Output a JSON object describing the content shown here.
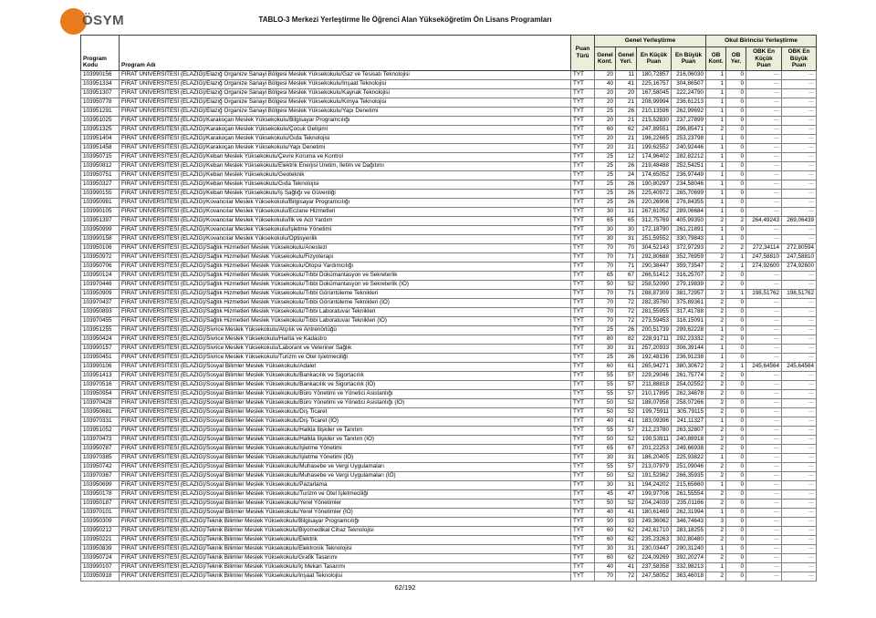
{
  "logo": {
    "text": "ÖSYM",
    "circle_color": "#e87b1e"
  },
  "title": "TABLO-3 Merkezi Yerleştirme İle Öğrenci Alan Yükseköğretim Ön Lisans Programları",
  "footer": {
    "page": "62/192"
  },
  "colors": {
    "header_bg": "#e9efda",
    "border_dark": "#404040",
    "border_light": "#808080",
    "dash_text": "#7f7f7f",
    "logo_orange": "#e87b1e"
  },
  "table": {
    "group_headers": {
      "genel": "Genel Yerleştirme",
      "okul": "Okul Birincisi Yerleştirme"
    },
    "headers": [
      "Program\nKodu",
      "Program Adı",
      "Puan\nTürü",
      "Genel\nKont.",
      "Genel\nYerl.",
      "En Küçük\nPuan",
      "En Büyük\nPuan",
      "OB\nKont.",
      "OB\nYer.",
      "OBK En\nKüçük Puan",
      "OBK En\nBüyük Puan"
    ],
    "rows": [
      [
        "103990156",
        "FIRAT ÜNİVERSİTESİ (ELAZIĞ)/Elazığ Organize Sanayi Bölgesi Meslek Yüksekokulu/Gaz ve Tesisatı Teknolojisi",
        "TYT",
        "20",
        "11",
        "180,72857",
        "216,06030",
        "1",
        "0",
        "---",
        "---"
      ],
      [
        "103951334",
        "FIRAT ÜNİVERSİTESİ (ELAZIĞ)/Elazığ Organize Sanayi Bölgesi Meslek Yüksekokulu/İnşaat Teknolojisi",
        "TYT",
        "40",
        "41",
        "225,16757",
        "304,86507",
        "1",
        "0",
        "---",
        "---"
      ],
      [
        "103951307",
        "FIRAT ÜNİVERSİTESİ (ELAZIĞ)/Elazığ Organize Sanayi Bölgesi Meslek Yüksekokulu/Kaynak Teknolojisi",
        "TYT",
        "20",
        "20",
        "167,58045",
        "222,24790",
        "1",
        "0",
        "---",
        "---"
      ],
      [
        "103950778",
        "FIRAT ÜNİVERSİTESİ (ELAZIĞ)/Elazığ Organize Sanayi Bölgesi Meslek Yüksekokulu/Kimya Teknolojisi",
        "TYT",
        "20",
        "21",
        "208,99994",
        "236,61213",
        "1",
        "0",
        "---",
        "---"
      ],
      [
        "103951291",
        "FIRAT ÜNİVERSİTESİ (ELAZIĞ)/Elazığ Organize Sanayi Bölgesi Meslek Yüksekokulu/Yapı Denetimi",
        "TYT",
        "25",
        "26",
        "210,13596",
        "262,99692",
        "1",
        "0",
        "---",
        "---"
      ],
      [
        "103951025",
        "FIRAT ÜNİVERSİTESİ (ELAZIĞ)/Karakoçan Meslek Yüksekokulu/Bilgisayar Programcılığı",
        "TYT",
        "20",
        "21",
        "215,52830",
        "237,27899",
        "1",
        "0",
        "---",
        "---"
      ],
      [
        "103951325",
        "FIRAT ÜNİVERSİTESİ (ELAZIĞ)/Karakoçan Meslek Yüksekokulu/Çocuk Gelişimi",
        "TYT",
        "60",
        "62",
        "247,89551",
        "296,85471",
        "2",
        "0",
        "---",
        "---"
      ],
      [
        "103951404",
        "FIRAT ÜNİVERSİTESİ (ELAZIĞ)/Karakoçan Meslek Yüksekokulu/Gıda Teknolojisi",
        "TYT",
        "20",
        "21",
        "196,22665",
        "253,23798",
        "1",
        "0",
        "---",
        "---"
      ],
      [
        "103951458",
        "FIRAT ÜNİVERSİTESİ (ELAZIĞ)/Karakoçan Meslek Yüksekokulu/Yapı Denetimi",
        "TYT",
        "20",
        "21",
        "199,62552",
        "240,92446",
        "1",
        "0",
        "---",
        "---"
      ],
      [
        "103950715",
        "FIRAT ÜNİVERSİTESİ (ELAZIĞ)/Keban Meslek Yüksekokulu/Çevre Koruma ve Kontrol",
        "TYT",
        "25",
        "12",
        "174,96402",
        "282,82212",
        "1",
        "0",
        "---",
        "---"
      ],
      [
        "103950812",
        "FIRAT ÜNİVERSİTESİ (ELAZIĞ)/Keban Meslek Yüksekokulu/Elektrik Enerjisi Üretim, İletim ve Dağıtımı",
        "TYT",
        "25",
        "26",
        "219,48488",
        "252,54251",
        "1",
        "0",
        "---",
        "---"
      ],
      [
        "103950751",
        "FIRAT ÜNİVERSİTESİ (ELAZIĞ)/Keban Meslek Yüksekokulu/Geoteknik",
        "TYT",
        "25",
        "24",
        "174,65052",
        "236,97449",
        "1",
        "0",
        "---",
        "---"
      ],
      [
        "103950327",
        "FIRAT ÜNİVERSİTESİ (ELAZIĞ)/Keban Meslek Yüksekokulu/Gıda Teknolojisi",
        "TYT",
        "25",
        "26",
        "190,80297",
        "234,58046",
        "1",
        "0",
        "---",
        "---"
      ],
      [
        "103990155",
        "FIRAT ÜNİVERSİTESİ (ELAZIĞ)/Keban Meslek Yüksekokulu/İş Sağlığı ve Güvenliği",
        "TYT",
        "25",
        "26",
        "225,40972",
        "265,70699",
        "1",
        "0",
        "---",
        "---"
      ],
      [
        "103950981",
        "FIRAT ÜNİVERSİTESİ (ELAZIĞ)/Kovancılar Meslek Yüksekokulu/Bilgisayar Programcılığı",
        "TYT",
        "25",
        "26",
        "220,26906",
        "276,84355",
        "1",
        "0",
        "---",
        "---"
      ],
      [
        "103990105",
        "FIRAT ÜNİVERSİTESİ (ELAZIĞ)/Kovancılar Meslek Yüksekokulu/Eczane Hizmetleri",
        "TYT",
        "30",
        "31",
        "267,61052",
        "289,06684",
        "1",
        "0",
        "---",
        "---"
      ],
      [
        "103951397",
        "FIRAT ÜNİVERSİTESİ (ELAZIĞ)/Kovancılar Meslek Yüksekokulu/İlk ve Acil Yardım",
        "TYT",
        "65",
        "65",
        "312,75769",
        "405,99350",
        "2",
        "2",
        "264,49243",
        "269,06439"
      ],
      [
        "103950999",
        "FIRAT ÜNİVERSİTESİ (ELAZIĞ)/Kovancılar Meslek Yüksekokulu/İşletme Yönetimi",
        "TYT",
        "30",
        "30",
        "172,18790",
        "261,21891",
        "1",
        "0",
        "---",
        "---"
      ],
      [
        "103990158",
        "FIRAT ÜNİVERSİTESİ (ELAZIĞ)/Kovancılar Meslek Yüksekokulu/Optisyenlik",
        "TYT",
        "30",
        "31",
        "251,59552",
        "330,79843",
        "1",
        "0",
        "---",
        "---"
      ],
      [
        "103950106",
        "FIRAT ÜNİVERSİTESİ (ELAZIĞ)/Sağlık Hizmetleri Meslek Yüksekokulu/Anestezi",
        "TYT",
        "70",
        "70",
        "304,52143",
        "372,97293",
        "2",
        "2",
        "272,34114",
        "272,80594"
      ],
      [
        "103950972",
        "FIRAT ÜNİVERSİTESİ (ELAZIĞ)/Sağlık Hizmetleri Meslek Yüksekokulu/Fizyoterapi",
        "TYT",
        "70",
        "71",
        "292,80688",
        "352,76959",
        "2",
        "1",
        "247,58810",
        "247,58810"
      ],
      [
        "103950706",
        "FIRAT ÜNİVERSİTESİ (ELAZIĞ)/Sağlık Hizmetleri Meslek Yüksekokulu/Otopsi Yardımcılığı",
        "TYT",
        "70",
        "71",
        "290,38447",
        "359,73547",
        "2",
        "1",
        "274,92600",
        "274,92600"
      ],
      [
        "103950124",
        "FIRAT ÜNİVERSİTESİ (ELAZIĞ)/Sağlık Hizmetleri Meslek Yüksekokulu/Tıbbi Dokümantasyon ve Sekreterlik",
        "TYT",
        "65",
        "67",
        "266,51412",
        "316,25707",
        "2",
        "0",
        "---",
        "---"
      ],
      [
        "103970446",
        "FIRAT ÜNİVERSİTESİ (ELAZIĞ)/Sağlık Hizmetleri Meslek Yüksekokulu/Tıbbi Dokümantasyon ve Sekreterlik (İÖ)",
        "TYT",
        "50",
        "52",
        "258,52090",
        "279,19839",
        "2",
        "0",
        "---",
        "---"
      ],
      [
        "103950909",
        "FIRAT ÜNİVERSİTESİ (ELAZIĞ)/Sağlık Hizmetleri Meslek Yüksekokulu/Tıbbi Görüntüleme Teknikleri",
        "TYT",
        "70",
        "71",
        "288,87309",
        "381,72957",
        "2",
        "1",
        "198,51762",
        "198,51762"
      ],
      [
        "103970437",
        "FIRAT ÜNİVERSİTESİ (ELAZIĞ)/Sağlık Hizmetleri Meslek Yüksekokulu/Tıbbi Görüntüleme Teknikleri (İÖ)",
        "TYT",
        "70",
        "72",
        "282,35760",
        "375,89361",
        "2",
        "0",
        "---",
        "---"
      ],
      [
        "103950893",
        "FIRAT ÜNİVERSİTESİ (ELAZIĞ)/Sağlık Hizmetleri Meslek Yüksekokulu/Tıbbi Laboratuvar Teknikleri",
        "TYT",
        "70",
        "72",
        "281,55955",
        "317,41788",
        "2",
        "0",
        "---",
        "---"
      ],
      [
        "103970455",
        "FIRAT ÜNİVERSİTESİ (ELAZIĞ)/Sağlık Hizmetleri Meslek Yüksekokulu/Tıbbi Laboratuvar Teknikleri (İÖ)",
        "TYT",
        "70",
        "72",
        "273,59453",
        "316,15091",
        "2",
        "0",
        "---",
        "---"
      ],
      [
        "103951255",
        "FIRAT ÜNİVERSİTESİ (ELAZIĞ)/Sivrice Meslek Yüksekokulu/Atçılık ve Antrenörlüğü",
        "TYT",
        "25",
        "26",
        "200,51739",
        "299,62228",
        "1",
        "0",
        "---",
        "---"
      ],
      [
        "103950424",
        "FIRAT ÜNİVERSİTESİ (ELAZIĞ)/Sivrice Meslek Yüksekokulu/Harita ve Kadastro",
        "TYT",
        "80",
        "82",
        "228,91711",
        "292,23332",
        "2",
        "0",
        "---",
        "---"
      ],
      [
        "103990157",
        "FIRAT ÜNİVERSİTESİ (ELAZIĞ)/Sivrice Meslek Yüksekokulu/Laborant ve Veteriner Sağlık",
        "TYT",
        "30",
        "31",
        "257,20933",
        "306,39144",
        "1",
        "0",
        "---",
        "---"
      ],
      [
        "103950451",
        "FIRAT ÜNİVERSİTESİ (ELAZIĞ)/Sivrice Meslek Yüksekokulu/Turizm ve Otel İşletmeciliği",
        "TYT",
        "25",
        "26",
        "192,48136",
        "236,91238",
        "1",
        "0",
        "---",
        "---"
      ],
      [
        "103990106",
        "FIRAT ÜNİVERSİTESİ (ELAZIĞ)/Sosyal Bilimler Meslek Yüksekokulu/Adalet",
        "TYT",
        "60",
        "61",
        "265,94271",
        "380,30672",
        "2",
        "1",
        "245,64564",
        "245,64564"
      ],
      [
        "103951413",
        "FIRAT ÜNİVERSİTESİ (ELAZIĞ)/Sosyal Bilimler Meslek Yüksekokulu/Bankacılık ve Sigortacılık",
        "TYT",
        "55",
        "57",
        "229,29046",
        "261,75774",
        "2",
        "0",
        "---",
        "---"
      ],
      [
        "103970516",
        "FIRAT ÜNİVERSİTESİ (ELAZIĞ)/Sosyal Bilimler Meslek Yüksekokulu/Bankacılık ve Sigortacılık (İÖ)",
        "TYT",
        "55",
        "57",
        "211,88818",
        "254,02552",
        "2",
        "0",
        "---",
        "---"
      ],
      [
        "103950954",
        "FIRAT ÜNİVERSİTESİ (ELAZIĞ)/Sosyal Bilimler Meslek Yüksekokulu/Büro Yönetimi ve Yönetici Asistanlığı",
        "TYT",
        "55",
        "57",
        "210,17895",
        "262,34878",
        "2",
        "0",
        "---",
        "---"
      ],
      [
        "103970428",
        "FIRAT ÜNİVERSİTESİ (ELAZIĞ)/Sosyal Bilimler Meslek Yüksekokulu/Büro Yönetimi ve Yönetici Asistanlığı (İÖ)",
        "TYT",
        "50",
        "52",
        "188,07958",
        "258,07266",
        "2",
        "0",
        "---",
        "---"
      ],
      [
        "103950681",
        "FIRAT ÜNİVERSİTESİ (ELAZIĞ)/Sosyal Bilimler Meslek Yüksekokulu/Dış Ticaret",
        "TYT",
        "50",
        "52",
        "199,75911",
        "305,79115",
        "2",
        "0",
        "---",
        "---"
      ],
      [
        "103970331",
        "FIRAT ÜNİVERSİTESİ (ELAZIĞ)/Sosyal Bilimler Meslek Yüksekokulu/Dış Ticaret (İÖ)",
        "TYT",
        "40",
        "41",
        "183,09396",
        "241,11327",
        "1",
        "0",
        "---",
        "---"
      ],
      [
        "103951052",
        "FIRAT ÜNİVERSİTESİ (ELAZIĞ)/Sosyal Bilimler Meslek Yüksekokulu/Halkla İlişkiler ve Tanıtım",
        "TYT",
        "55",
        "57",
        "212,23780",
        "263,32807",
        "2",
        "0",
        "---",
        "---"
      ],
      [
        "103970473",
        "FIRAT ÜNİVERSİTESİ (ELAZIĞ)/Sosyal Bilimler Meslek Yüksekokulu/Halkla İlişkiler ve Tanıtım (İÖ)",
        "TYT",
        "50",
        "52",
        "190,53911",
        "240,88918",
        "2",
        "0",
        "---",
        "---"
      ],
      [
        "103950787",
        "FIRAT ÜNİVERSİTESİ (ELAZIĞ)/Sosyal Bilimler Meslek Yüksekokulu/İşletme Yönetimi",
        "TYT",
        "65",
        "67",
        "201,22253",
        "249,66938",
        "2",
        "0",
        "---",
        "---"
      ],
      [
        "103970385",
        "FIRAT ÜNİVERSİTESİ (ELAZIĞ)/Sosyal Bilimler Meslek Yüksekokulu/İşletme Yönetimi (İÖ)",
        "TYT",
        "30",
        "31",
        "186,20405",
        "225,93822",
        "1",
        "0",
        "---",
        "---"
      ],
      [
        "103950742",
        "FIRAT ÜNİVERSİTESİ (ELAZIĞ)/Sosyal Bilimler Meslek Yüksekokulu/Muhasebe ve Vergi Uygulamaları",
        "TYT",
        "55",
        "57",
        "213,07979",
        "251,09046",
        "2",
        "0",
        "---",
        "---"
      ],
      [
        "103970367",
        "FIRAT ÜNİVERSİTESİ (ELAZIĞ)/Sosyal Bilimler Meslek Yüksekokulu/Muhasebe ve Vergi Uygulamaları (İÖ)",
        "TYT",
        "50",
        "52",
        "191,52962",
        "266,35935",
        "2",
        "0",
        "---",
        "---"
      ],
      [
        "103950699",
        "FIRAT ÜNİVERSİTESİ (ELAZIĞ)/Sosyal Bilimler Meslek Yüksekokulu/Pazarlama",
        "TYT",
        "30",
        "31",
        "194,24202",
        "215,65660",
        "1",
        "0",
        "---",
        "---"
      ],
      [
        "103950178",
        "FIRAT ÜNİVERSİTESİ (ELAZIĞ)/Sosyal Bilimler Meslek Yüksekokulu/Turizm ve Otel İşletmeciliği",
        "TYT",
        "45",
        "47",
        "199,97706",
        "261,55554",
        "2",
        "0",
        "---",
        "---"
      ],
      [
        "103950187",
        "FIRAT ÜNİVERSİTESİ (ELAZIĞ)/Sosyal Bilimler Meslek Yüksekokulu/Yerel Yönetimler",
        "TYT",
        "50",
        "52",
        "204,24039",
        "235,01166",
        "2",
        "0",
        "---",
        "---"
      ],
      [
        "103970101",
        "FIRAT ÜNİVERSİTESİ (ELAZIĞ)/Sosyal Bilimler Meslek Yüksekokulu/Yerel Yönetimler (İÖ)",
        "TYT",
        "40",
        "41",
        "180,61469",
        "262,31994",
        "1",
        "0",
        "---",
        "---"
      ],
      [
        "103950309",
        "FIRAT ÜNİVERSİTESİ (ELAZIĞ)/Teknik Bilimler Meslek Yüksekokulu/Bilgisayar Programcılığı",
        "TYT",
        "90",
        "93",
        "249,36062",
        "346,74643",
        "3",
        "0",
        "---",
        "---"
      ],
      [
        "103950212",
        "FIRAT ÜNİVERSİTESİ (ELAZIĞ)/Teknik Bilimler Meslek Yüksekokulu/Biyomedikal Cihaz Teknolojisi",
        "TYT",
        "60",
        "62",
        "242,61710",
        "283,18255",
        "2",
        "0",
        "---",
        "---"
      ],
      [
        "103950221",
        "FIRAT ÜNİVERSİTESİ (ELAZIĞ)/Teknik Bilimler Meslek Yüksekokulu/Elektrik",
        "TYT",
        "60",
        "62",
        "235,23263",
        "302,80480",
        "2",
        "0",
        "---",
        "---"
      ],
      [
        "103950839",
        "FIRAT ÜNİVERSİTESİ (ELAZIĞ)/Teknik Bilimler Meslek Yüksekokulu/Elektronik Teknolojisi",
        "TYT",
        "30",
        "31",
        "230,03447",
        "290,31240",
        "1",
        "0",
        "---",
        "---"
      ],
      [
        "103950724",
        "FIRAT ÜNİVERSİTESİ (ELAZIĞ)/Teknik Bilimler Meslek Yüksekokulu/Grafik Tasarımı",
        "TYT",
        "60",
        "62",
        "224,09269",
        "392,20274",
        "2",
        "0",
        "---",
        "---"
      ],
      [
        "103990107",
        "FIRAT ÜNİVERSİTESİ (ELAZIĞ)/Teknik Bilimler Meslek Yüksekokulu/İç Mekan Tasarımı",
        "TYT",
        "40",
        "41",
        "237,58358",
        "332,98213",
        "1",
        "0",
        "---",
        "---"
      ],
      [
        "103950918",
        "FIRAT ÜNİVERSİTESİ (ELAZIĞ)/Teknik Bilimler Meslek Yüksekokulu/İnşaat Teknolojisi",
        "TYT",
        "70",
        "72",
        "247,58052",
        "363,46018",
        "2",
        "0",
        "---",
        "---"
      ]
    ]
  }
}
